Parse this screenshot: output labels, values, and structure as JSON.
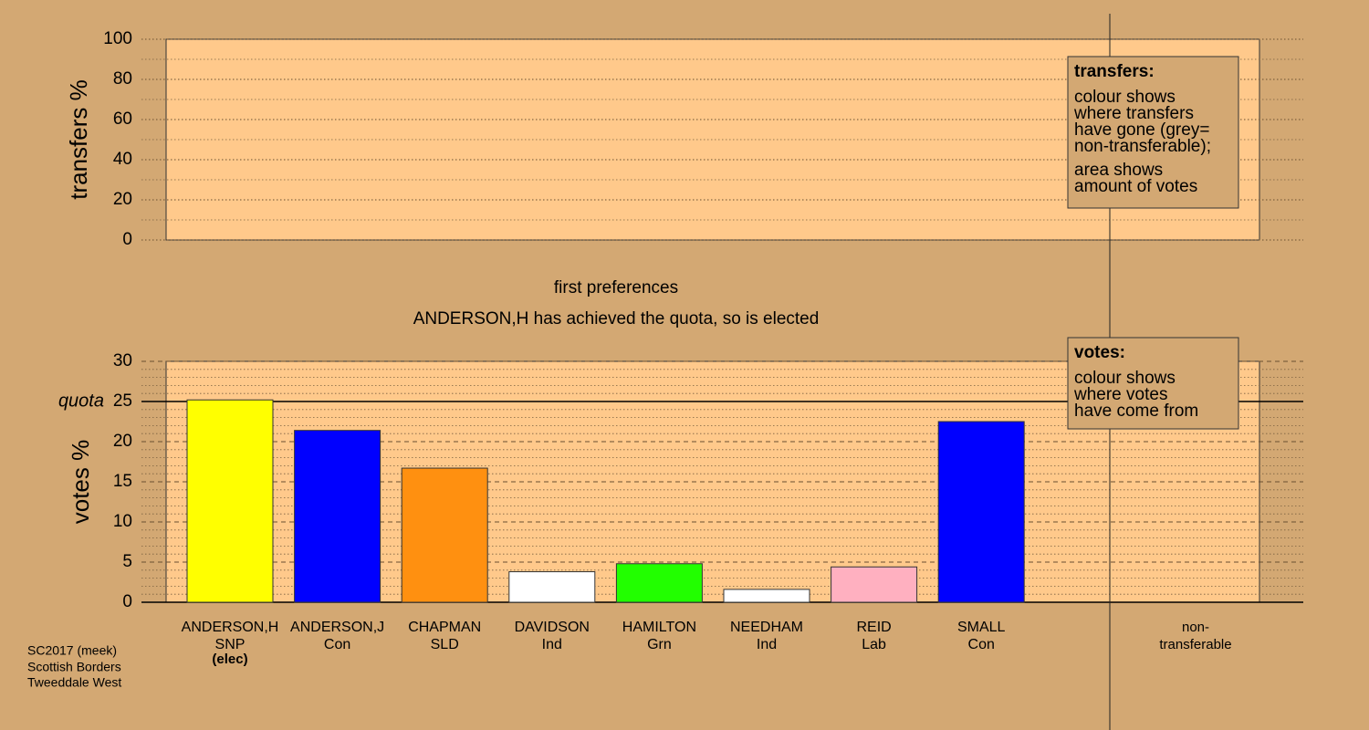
{
  "chart_data": [
    {
      "type": "bar",
      "ylabel": "transfers %",
      "ylim": [
        0,
        100
      ],
      "yticks": [
        0,
        20,
        40,
        60,
        80,
        100
      ],
      "grid": true,
      "legend": {
        "title": "transfers:",
        "paragraphs": [
          [
            "colour shows",
            "where transfers",
            "have gone (grey=",
            "non-transferable);"
          ],
          [
            "area shows",
            "amount of votes"
          ]
        ]
      }
    },
    {
      "type": "bar",
      "title": "first preferences",
      "subtitle": "ANDERSON,H has achieved the quota, so is elected",
      "ylabel": "votes %",
      "ylim": [
        0,
        30
      ],
      "yticks": [
        0,
        5,
        10,
        15,
        20,
        25,
        30
      ],
      "grid": true,
      "quota": {
        "label": "quota",
        "value": 25
      },
      "categories": [
        [
          "ANDERSON,H",
          "SNP"
        ],
        [
          "ANDERSON,J",
          "Con"
        ],
        [
          "CHAPMAN",
          "SLD"
        ],
        [
          "DAVIDSON",
          "Ind"
        ],
        [
          "HAMILTON",
          "Grn"
        ],
        [
          "NEEDHAM",
          "Ind"
        ],
        [
          "REID",
          "Lab"
        ],
        [
          "SMALL",
          "Con"
        ],
        [
          "non-",
          "transferable"
        ]
      ],
      "values": [
        25.2,
        21.4,
        16.7,
        3.8,
        4.8,
        1.6,
        4.4,
        22.5,
        null
      ],
      "colors": [
        "#ffff00",
        "#0000ff",
        "#ff9010",
        "#ffffff",
        "#22ff00",
        "#ffffff",
        "#ffb0c0",
        "#0000ff",
        null
      ],
      "value_notes": [
        "(elec)",
        null,
        null,
        null,
        null,
        null,
        null,
        null,
        null
      ],
      "legend": {
        "title": "votes:",
        "paragraphs": [
          [
            "colour shows",
            "where votes",
            "have come from"
          ]
        ]
      }
    }
  ],
  "footer": [
    "SC2017 (meek)",
    "Scottish Borders",
    "Tweeddale West"
  ]
}
